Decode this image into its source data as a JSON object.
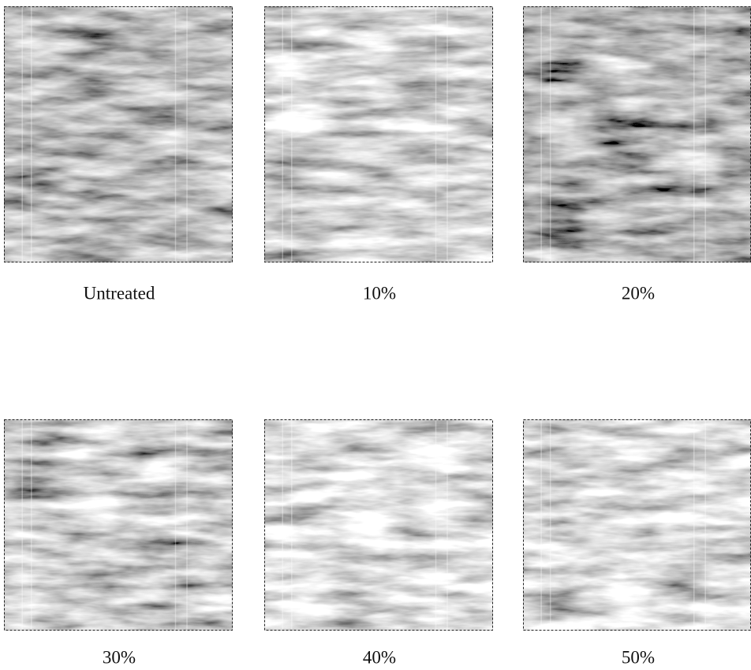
{
  "panels": [
    {
      "label": "Untreated"
    },
    {
      "label": "10%"
    },
    {
      "label": "20%"
    },
    {
      "label": "30%"
    },
    {
      "label": "40%"
    },
    {
      "label": "50%"
    }
  ]
}
